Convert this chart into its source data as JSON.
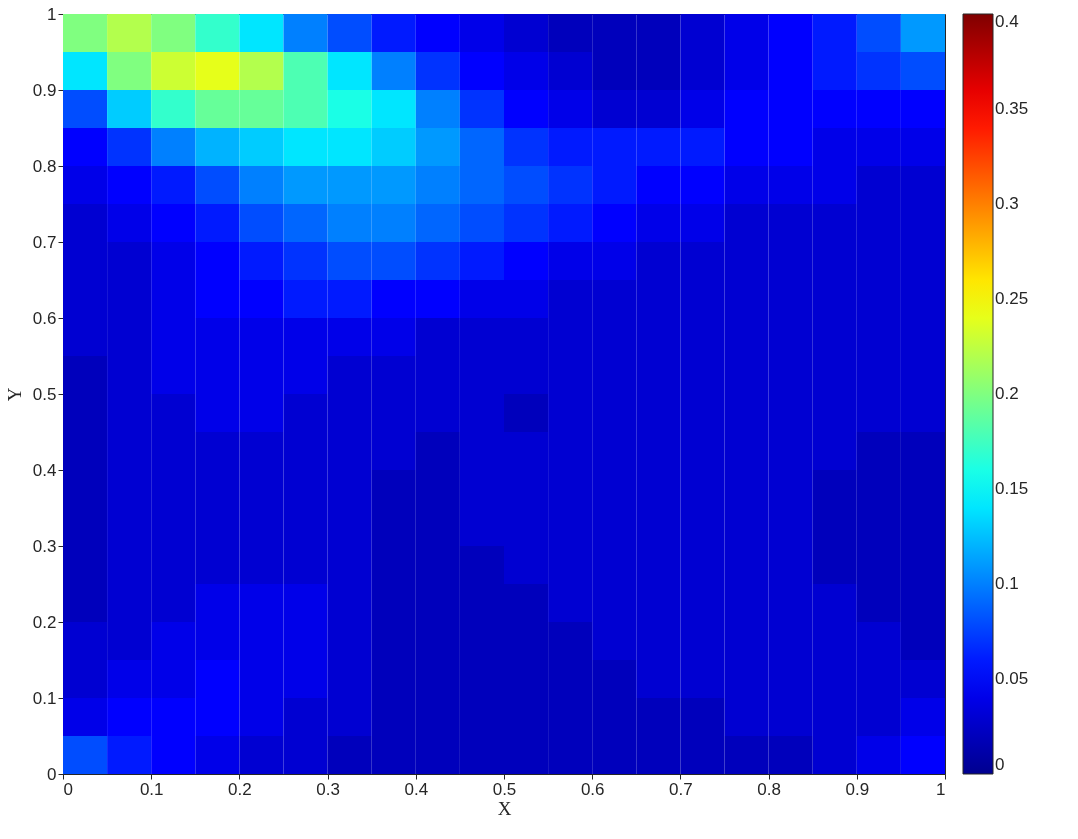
{
  "chart_data": {
    "type": "heatmap",
    "xlabel": "X",
    "ylabel": "Y",
    "xlim": [
      0,
      1
    ],
    "ylim": [
      0,
      1
    ],
    "xticks": [
      0,
      0.1,
      0.2,
      0.3,
      0.4,
      0.5,
      0.6,
      0.7,
      0.8,
      0.9,
      1
    ],
    "yticks": [
      0,
      0.1,
      0.2,
      0.3,
      0.4,
      0.5,
      0.6,
      0.7,
      0.8,
      0.9,
      1
    ],
    "clim": [
      0,
      0.4
    ],
    "cticks": [
      0,
      0.05,
      0.1,
      0.15,
      0.2,
      0.25,
      0.3,
      0.35,
      0.4
    ],
    "grid": false,
    "cells": [
      [
        0.2,
        0.22,
        0.2,
        0.17,
        0.14,
        0.1,
        0.08,
        0.06,
        0.05,
        0.04,
        0.03,
        0.02,
        0.02,
        0.02,
        0.03,
        0.04,
        0.05,
        0.06,
        0.08,
        0.11
      ],
      [
        0.14,
        0.2,
        0.23,
        0.24,
        0.22,
        0.18,
        0.14,
        0.1,
        0.07,
        0.05,
        0.04,
        0.03,
        0.02,
        0.02,
        0.03,
        0.04,
        0.05,
        0.06,
        0.07,
        0.08
      ],
      [
        0.08,
        0.13,
        0.17,
        0.19,
        0.19,
        0.18,
        0.16,
        0.14,
        0.1,
        0.07,
        0.05,
        0.04,
        0.03,
        0.03,
        0.04,
        0.05,
        0.05,
        0.05,
        0.05,
        0.05
      ],
      [
        0.05,
        0.07,
        0.1,
        0.12,
        0.13,
        0.14,
        0.14,
        0.13,
        0.11,
        0.09,
        0.07,
        0.06,
        0.06,
        0.06,
        0.06,
        0.05,
        0.05,
        0.04,
        0.04,
        0.04
      ],
      [
        0.04,
        0.05,
        0.06,
        0.08,
        0.1,
        0.11,
        0.11,
        0.11,
        0.1,
        0.09,
        0.08,
        0.07,
        0.06,
        0.05,
        0.05,
        0.04,
        0.04,
        0.04,
        0.03,
        0.03
      ],
      [
        0.03,
        0.04,
        0.05,
        0.06,
        0.08,
        0.09,
        0.1,
        0.1,
        0.09,
        0.08,
        0.07,
        0.06,
        0.05,
        0.04,
        0.04,
        0.03,
        0.03,
        0.03,
        0.03,
        0.03
      ],
      [
        0.03,
        0.03,
        0.04,
        0.05,
        0.06,
        0.07,
        0.08,
        0.08,
        0.07,
        0.06,
        0.05,
        0.04,
        0.04,
        0.03,
        0.03,
        0.03,
        0.03,
        0.03,
        0.03,
        0.03
      ],
      [
        0.03,
        0.03,
        0.04,
        0.05,
        0.05,
        0.06,
        0.06,
        0.05,
        0.05,
        0.04,
        0.04,
        0.03,
        0.03,
        0.03,
        0.03,
        0.03,
        0.03,
        0.03,
        0.03,
        0.03
      ],
      [
        0.03,
        0.03,
        0.04,
        0.04,
        0.04,
        0.04,
        0.04,
        0.04,
        0.03,
        0.03,
        0.03,
        0.03,
        0.03,
        0.03,
        0.03,
        0.03,
        0.03,
        0.03,
        0.03,
        0.03
      ],
      [
        0.02,
        0.03,
        0.04,
        0.04,
        0.04,
        0.04,
        0.03,
        0.03,
        0.03,
        0.03,
        0.03,
        0.03,
        0.03,
        0.03,
        0.03,
        0.03,
        0.03,
        0.03,
        0.03,
        0.03
      ],
      [
        0.02,
        0.03,
        0.03,
        0.04,
        0.04,
        0.03,
        0.03,
        0.03,
        0.03,
        0.03,
        0.02,
        0.03,
        0.03,
        0.03,
        0.03,
        0.03,
        0.03,
        0.03,
        0.03,
        0.03
      ],
      [
        0.02,
        0.03,
        0.03,
        0.03,
        0.03,
        0.03,
        0.03,
        0.03,
        0.02,
        0.03,
        0.03,
        0.03,
        0.03,
        0.03,
        0.03,
        0.03,
        0.03,
        0.03,
        0.02,
        0.02
      ],
      [
        0.02,
        0.03,
        0.03,
        0.03,
        0.03,
        0.03,
        0.03,
        0.02,
        0.02,
        0.03,
        0.03,
        0.03,
        0.03,
        0.03,
        0.03,
        0.03,
        0.03,
        0.02,
        0.02,
        0.02
      ],
      [
        0.02,
        0.03,
        0.03,
        0.03,
        0.03,
        0.03,
        0.03,
        0.02,
        0.02,
        0.03,
        0.03,
        0.03,
        0.03,
        0.03,
        0.03,
        0.03,
        0.03,
        0.02,
        0.02,
        0.02
      ],
      [
        0.02,
        0.03,
        0.03,
        0.03,
        0.03,
        0.03,
        0.03,
        0.02,
        0.02,
        0.02,
        0.03,
        0.03,
        0.03,
        0.03,
        0.03,
        0.03,
        0.03,
        0.02,
        0.02,
        0.02
      ],
      [
        0.02,
        0.03,
        0.03,
        0.04,
        0.04,
        0.04,
        0.03,
        0.02,
        0.02,
        0.02,
        0.02,
        0.03,
        0.03,
        0.03,
        0.03,
        0.03,
        0.03,
        0.03,
        0.02,
        0.02
      ],
      [
        0.03,
        0.03,
        0.04,
        0.04,
        0.04,
        0.04,
        0.03,
        0.02,
        0.02,
        0.02,
        0.02,
        0.02,
        0.03,
        0.03,
        0.03,
        0.03,
        0.03,
        0.03,
        0.03,
        0.02
      ],
      [
        0.03,
        0.04,
        0.04,
        0.05,
        0.04,
        0.04,
        0.03,
        0.02,
        0.02,
        0.02,
        0.02,
        0.02,
        0.02,
        0.03,
        0.03,
        0.03,
        0.03,
        0.03,
        0.03,
        0.03
      ],
      [
        0.04,
        0.05,
        0.05,
        0.05,
        0.04,
        0.03,
        0.03,
        0.02,
        0.02,
        0.02,
        0.02,
        0.02,
        0.02,
        0.02,
        0.02,
        0.03,
        0.03,
        0.03,
        0.03,
        0.04
      ],
      [
        0.08,
        0.06,
        0.05,
        0.04,
        0.03,
        0.03,
        0.02,
        0.02,
        0.02,
        0.02,
        0.02,
        0.02,
        0.02,
        0.02,
        0.02,
        0.02,
        0.02,
        0.03,
        0.04,
        0.05
      ]
    ]
  }
}
